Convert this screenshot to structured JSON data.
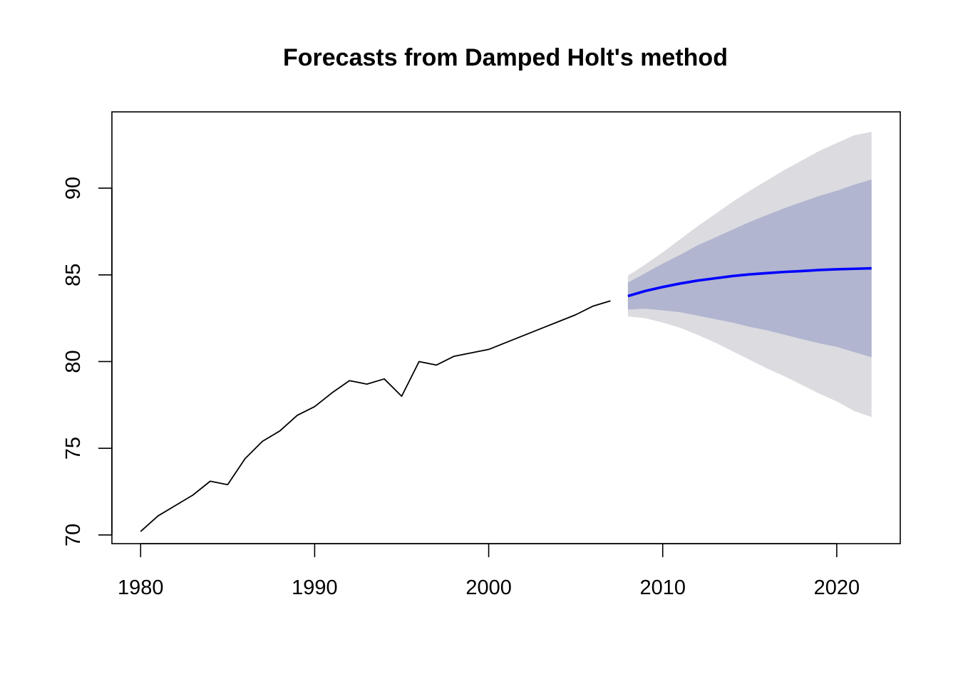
{
  "chart_data": {
    "type": "line",
    "title": "Forecasts from Damped Holt's method",
    "xlabel": "",
    "ylabel": "",
    "xlim": [
      1978.35,
      2023.65
    ],
    "ylim": [
      69.5,
      94.4
    ],
    "x_ticks": [
      1980,
      1990,
      2000,
      2010,
      2020
    ],
    "y_ticks": [
      70,
      75,
      80,
      85,
      90
    ],
    "grid": false,
    "legend": "none",
    "colors": {
      "history": "#000000",
      "forecast": "#0000ff",
      "band80": "#b1b5cf",
      "band95": "#dbdbe0"
    },
    "series": [
      {
        "x": [
          1980,
          1981,
          1982,
          1983,
          1984,
          1985,
          1986,
          1987,
          1988,
          1989,
          1990,
          1991,
          1992,
          1993,
          1994,
          1995,
          1996,
          1997,
          1998,
          1999,
          2000,
          2001,
          2002,
          2003,
          2004,
          2005,
          2006,
          2007
        ],
        "values": [
          70.2,
          71.1,
          71.7,
          72.3,
          73.1,
          72.9,
          74.4,
          75.4,
          76.0,
          76.9,
          77.4,
          78.2,
          78.9,
          78.7,
          79.0,
          78.0,
          80.0,
          79.8,
          80.3,
          80.5,
          80.7,
          81.1,
          81.5,
          81.9,
          82.3,
          82.7,
          83.2,
          83.5
        ]
      },
      {
        "x": [
          2008,
          2009,
          2010,
          2011,
          2012,
          2013,
          2014,
          2015,
          2016,
          2017,
          2018,
          2019,
          2020,
          2021,
          2022
        ],
        "values": [
          83.78,
          84.07,
          84.3,
          84.5,
          84.67,
          84.8,
          84.93,
          85.03,
          85.1,
          85.17,
          85.22,
          85.28,
          85.32,
          85.35,
          85.38
        ]
      }
    ],
    "intervals": {
      "x": [
        2008,
        2009,
        2010,
        2011,
        2012,
        2013,
        2014,
        2015,
        2016,
        2017,
        2018,
        2019,
        2020,
        2021,
        2022
      ],
      "lo80": [
        83.0,
        83.05,
        82.95,
        82.85,
        82.65,
        82.45,
        82.25,
        82.0,
        81.8,
        81.55,
        81.3,
        81.05,
        80.85,
        80.55,
        80.25
      ],
      "hi80": [
        84.55,
        85.1,
        85.65,
        86.15,
        86.7,
        87.15,
        87.6,
        88.05,
        88.45,
        88.85,
        89.2,
        89.55,
        89.85,
        90.2,
        90.5
      ],
      "lo95": [
        82.6,
        82.5,
        82.25,
        81.95,
        81.55,
        81.1,
        80.6,
        80.1,
        79.6,
        79.15,
        78.65,
        78.15,
        77.7,
        77.15,
        76.8
      ],
      "hi95": [
        84.95,
        85.6,
        86.3,
        87.05,
        87.8,
        88.5,
        89.2,
        89.85,
        90.45,
        91.05,
        91.6,
        92.15,
        92.6,
        93.05,
        93.25
      ]
    }
  }
}
